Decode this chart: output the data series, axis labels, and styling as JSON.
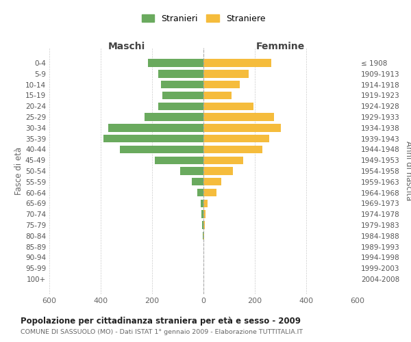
{
  "age_groups": [
    "0-4",
    "5-9",
    "10-14",
    "15-19",
    "20-24",
    "25-29",
    "30-34",
    "35-39",
    "40-44",
    "45-49",
    "50-54",
    "55-59",
    "60-64",
    "65-69",
    "70-74",
    "75-79",
    "80-84",
    "85-89",
    "90-94",
    "95-99",
    "100+"
  ],
  "birth_years": [
    "2004-2008",
    "1999-2003",
    "1994-1998",
    "1989-1993",
    "1984-1988",
    "1979-1983",
    "1974-1978",
    "1969-1973",
    "1964-1968",
    "1959-1963",
    "1954-1958",
    "1949-1953",
    "1944-1948",
    "1939-1943",
    "1934-1938",
    "1929-1933",
    "1924-1928",
    "1919-1923",
    "1914-1918",
    "1909-1913",
    "≤ 1908"
  ],
  "maschi": [
    215,
    175,
    165,
    160,
    175,
    230,
    370,
    390,
    325,
    190,
    90,
    45,
    25,
    10,
    7,
    5,
    2,
    0,
    0,
    0,
    0
  ],
  "femmine": [
    265,
    175,
    140,
    110,
    195,
    275,
    300,
    255,
    230,
    155,
    115,
    70,
    50,
    15,
    8,
    6,
    3,
    0,
    0,
    0,
    0
  ],
  "maschi_color": "#6aaa5e",
  "femmine_color": "#f5bc3c",
  "title": "Popolazione per cittadinanza straniera per età e sesso - 2009",
  "subtitle": "COMUNE DI SASSUOLO (MO) - Dati ISTAT 1° gennaio 2009 - Elaborazione TUTTITALIA.IT",
  "legend_maschi": "Stranieri",
  "legend_femmine": "Straniere",
  "xlabel_left": "Maschi",
  "xlabel_right": "Femmine",
  "ylabel_left": "Fasce di età",
  "ylabel_right": "Anni di nascita",
  "xlim": 600,
  "background_color": "#ffffff",
  "grid_color": "#cccccc"
}
